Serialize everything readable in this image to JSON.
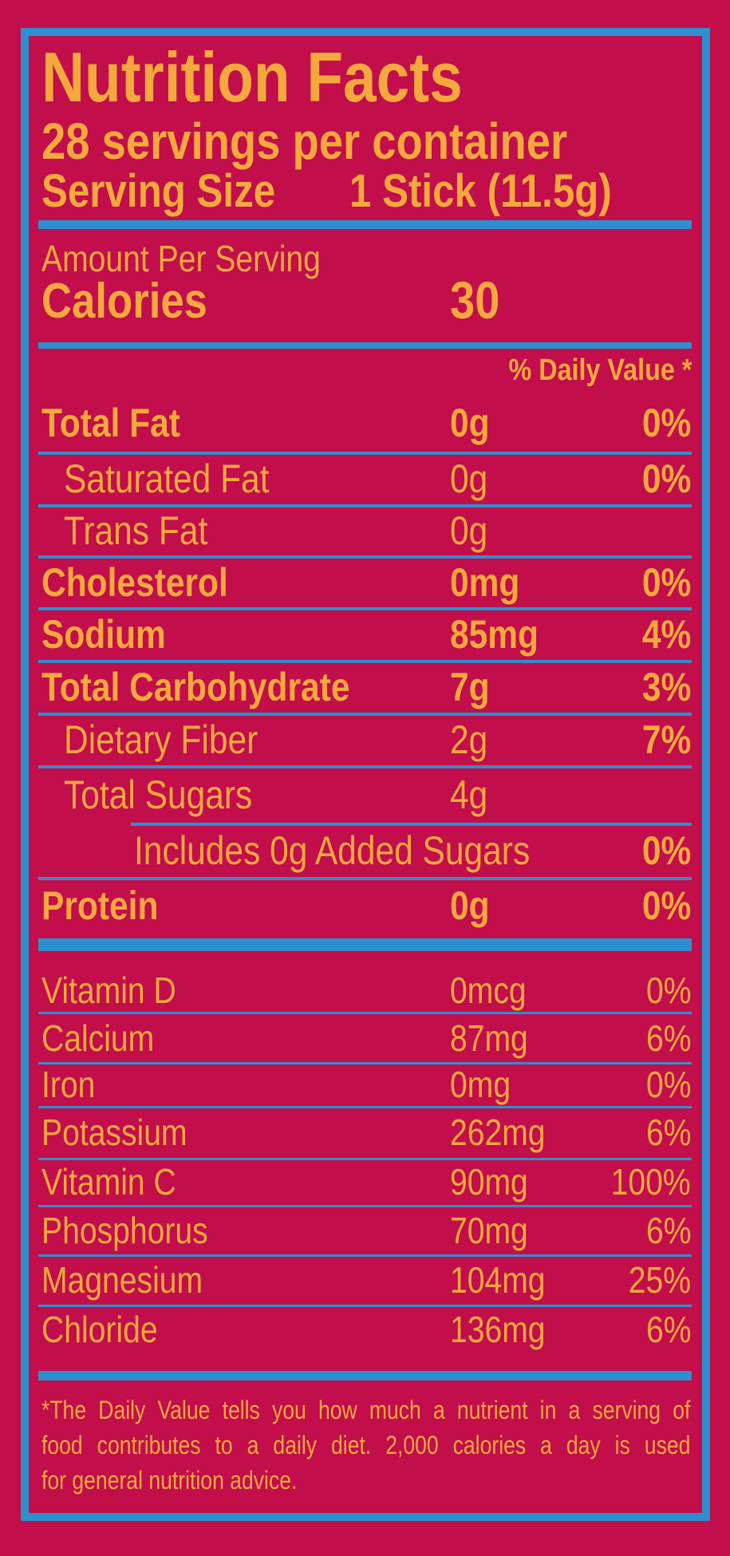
{
  "label": {
    "title": "Nutrition Facts",
    "servings_per_container": "28 servings per container",
    "serving_size_label": "Serving Size",
    "serving_size_value": "1 Stick (11.5g)",
    "amount_per_serving": "Amount Per Serving",
    "calories_label": "Calories",
    "calories_value": "30",
    "daily_value_header": "% Daily Value *",
    "nutrients": [
      {
        "name": "Total Fat",
        "amount": "0g",
        "dv": "0%"
      },
      {
        "name": "Saturated Fat",
        "amount": "0g",
        "dv": "0%"
      },
      {
        "name": "Trans Fat",
        "amount": "0g",
        "dv": ""
      },
      {
        "name": "Cholesterol",
        "amount": "0mg",
        "dv": "0%"
      },
      {
        "name": "Sodium",
        "amount": "85mg",
        "dv": "4%"
      },
      {
        "name": "Total Carbohydrate",
        "amount": "7g",
        "dv": "3%"
      },
      {
        "name": "Dietary Fiber",
        "amount": "2g",
        "dv": "7%"
      },
      {
        "name": "Total Sugars",
        "amount": "4g",
        "dv": ""
      },
      {
        "name": "Includes 0g Added Sugars",
        "amount": "",
        "dv": "0%"
      },
      {
        "name": "Protein",
        "amount": "0g",
        "dv": "0%"
      }
    ],
    "vitamins": [
      {
        "name": "Vitamin D",
        "amount": "0mcg",
        "dv": "0%"
      },
      {
        "name": "Calcium",
        "amount": "87mg",
        "dv": "6%"
      },
      {
        "name": "Iron",
        "amount": "0mg",
        "dv": "0%"
      },
      {
        "name": "Potassium",
        "amount": "262mg",
        "dv": "6%"
      },
      {
        "name": "Vitamin C",
        "amount": "90mg",
        "dv": "100%"
      },
      {
        "name": "Phosphorus",
        "amount": "70mg",
        "dv": "6%"
      },
      {
        "name": "Magnesium",
        "amount": "104mg",
        "dv": "25%"
      },
      {
        "name": "Chloride",
        "amount": "136mg",
        "dv": "6%"
      }
    ],
    "footnote_line1": "*The Daily Value tells you how much a nutrient in a serving of",
    "footnote_line2": "food contributes to a daily diet. 2,000 calories a day is used",
    "footnote_line3": "for general nutrition advice.",
    "colors": {
      "background": "#C20E4A",
      "accent_blue": "#2E8FCE",
      "text_orange": "#F4A83E"
    }
  }
}
